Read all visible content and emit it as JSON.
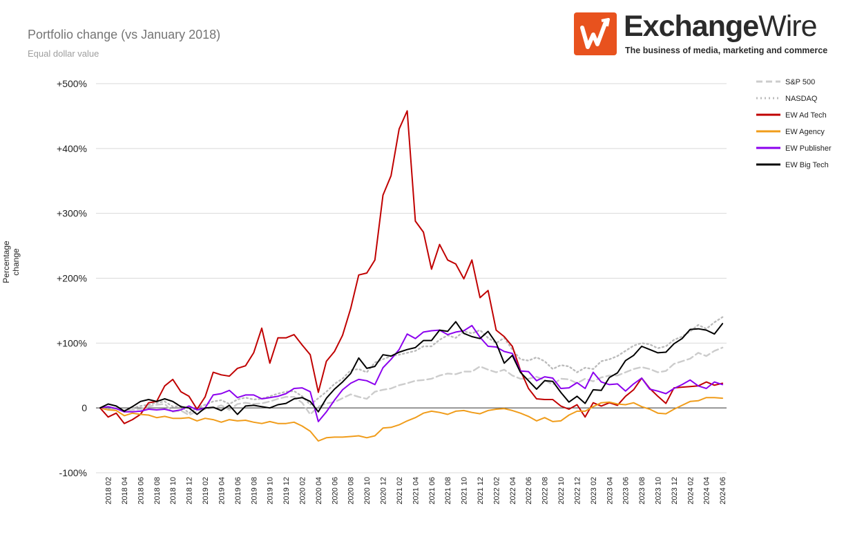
{
  "header": {
    "title": "Portfolio change (vs January 2018)",
    "subtitle": "Equal dollar value"
  },
  "logo": {
    "name_bold": "Exchange",
    "name_light": "Wire",
    "tagline": "The business of media, marketing and commerce",
    "brand_color": "#e8521e"
  },
  "chart_data": {
    "type": "line",
    "title": "Portfolio change (vs January 2018)",
    "subtitle": "Equal dollar value",
    "ylabel": "Percentage change",
    "xlabel": "",
    "ylim": [
      -100,
      500
    ],
    "yticks": [
      -100,
      0,
      100,
      200,
      300,
      400,
      500
    ],
    "ytick_labels": [
      "-100%",
      "0",
      "+100%",
      "+200%",
      "+300%",
      "+400%",
      "+500%"
    ],
    "grid": true,
    "legend_position": "right",
    "x": [
      "2018 01",
      "2018 02",
      "2018 03",
      "2018 04",
      "2018 05",
      "2018 06",
      "2018 07",
      "2018 08",
      "2018 09",
      "2018 10",
      "2018 11",
      "2018 12",
      "2019 01",
      "2019 02",
      "2019 03",
      "2019 04",
      "2019 05",
      "2019 06",
      "2019 07",
      "2019 08",
      "2019 09",
      "2019 10",
      "2019 11",
      "2019 12",
      "2020 01",
      "2020 02",
      "2020 03",
      "2020 04",
      "2020 05",
      "2020 06",
      "2020 07",
      "2020 08",
      "2020 09",
      "2020 10",
      "2020 11",
      "2020 12",
      "2021 01",
      "2021 02",
      "2021 03",
      "2021 04",
      "2021 05",
      "2021 06",
      "2021 07",
      "2021 08",
      "2021 09",
      "2021 10",
      "2021 11",
      "2021 12",
      "2022 01",
      "2022 02",
      "2022 03",
      "2022 04",
      "2022 05",
      "2022 06",
      "2022 07",
      "2022 08",
      "2022 09",
      "2022 10",
      "2022 11",
      "2022 12",
      "2023 01",
      "2023 02",
      "2023 03",
      "2023 04",
      "2023 05",
      "2023 06",
      "2023 07",
      "2023 08",
      "2023 09",
      "2023 10",
      "2023 11",
      "2023 12",
      "2024 01",
      "2024 02",
      "2024 03",
      "2024 04",
      "2024 05",
      "2024 06"
    ],
    "x_tick_labels": [
      "2018 02",
      "2018 04",
      "2018 06",
      "2018 08",
      "2018 10",
      "2018 12",
      "2019 02",
      "2019 04",
      "2019 06",
      "2019 08",
      "2019 10",
      "2019 12",
      "2020 02",
      "2020 04",
      "2020 06",
      "2020 08",
      "2020 10",
      "2020 12",
      "2021 02",
      "2021 04",
      "2021 06",
      "2021 08",
      "2021 10",
      "2021 12",
      "2022 02",
      "2022 04",
      "2022 06",
      "2022 08",
      "2022 10",
      "2022 12",
      "2023 02",
      "2023 04",
      "2023 06",
      "2023 08",
      "2023 10",
      "2023 12",
      "2024 02",
      "2024 04",
      "2024 06"
    ],
    "series": [
      {
        "name": "S&P 500",
        "color": "#cccccc",
        "style": "dashed",
        "values": [
          0,
          -3,
          -1,
          -6,
          -3,
          -2,
          2,
          5,
          6,
          -6,
          -4,
          -11,
          -5,
          -2,
          0,
          4,
          -3,
          6,
          8,
          6,
          7,
          10,
          14,
          17,
          17,
          8,
          -10,
          2,
          7,
          9,
          15,
          21,
          17,
          14,
          25,
          28,
          30,
          35,
          38,
          42,
          43,
          45,
          50,
          53,
          52,
          56,
          56,
          64,
          59,
          55,
          59,
          50,
          45,
          45,
          48,
          43,
          36,
          45,
          44,
          38,
          45,
          41,
          47,
          50,
          50,
          55,
          60,
          63,
          60,
          55,
          57,
          68,
          72,
          76,
          85,
          80,
          88,
          93
        ]
      },
      {
        "name": "NASDAQ",
        "color": "#bbbbbb",
        "style": "dotted",
        "values": [
          0,
          -2,
          0,
          -4,
          0,
          3,
          5,
          8,
          10,
          2,
          3,
          -8,
          0,
          5,
          10,
          12,
          6,
          13,
          16,
          13,
          14,
          18,
          22,
          25,
          26,
          18,
          5,
          15,
          25,
          37,
          45,
          58,
          60,
          55,
          70,
          75,
          80,
          82,
          85,
          88,
          95,
          95,
          105,
          112,
          108,
          118,
          115,
          120,
          108,
          100,
          108,
          90,
          75,
          73,
          78,
          72,
          60,
          66,
          64,
          55,
          62,
          60,
          72,
          75,
          80,
          88,
          96,
          100,
          98,
          92,
          95,
          105,
          110,
          118,
          128,
          122,
          132,
          140
        ]
      },
      {
        "name": "EW Ad Tech",
        "color": "#c00000",
        "style": "solid",
        "values": [
          0,
          -14,
          -8,
          -24,
          -18,
          -10,
          8,
          10,
          34,
          44,
          25,
          18,
          -2,
          17,
          55,
          51,
          49,
          61,
          65,
          85,
          123,
          69,
          108,
          108,
          113,
          97,
          82,
          24,
          72,
          87,
          112,
          153,
          205,
          208,
          228,
          328,
          358,
          430,
          458,
          288,
          271,
          214,
          252,
          228,
          222,
          199,
          228,
          170,
          181,
          120,
          110,
          95,
          58,
          30,
          14,
          13,
          13,
          3,
          -2,
          5,
          -14,
          8,
          3,
          8,
          4,
          18,
          28,
          46,
          30,
          18,
          7,
          31,
          32,
          33,
          34,
          40,
          35,
          38
        ]
      },
      {
        "name": "EW Agency",
        "color": "#f09c1a",
        "style": "solid",
        "values": [
          0,
          -3,
          -4,
          -12,
          -8,
          -10,
          -11,
          -15,
          -13,
          -16,
          -16,
          -15,
          -20,
          -16,
          -18,
          -22,
          -18,
          -20,
          -19,
          -22,
          -24,
          -21,
          -24,
          -24,
          -22,
          -28,
          -36,
          -51,
          -46,
          -45,
          -45,
          -44,
          -43,
          -46,
          -43,
          -31,
          -30,
          -26,
          -20,
          -15,
          -8,
          -5,
          -7,
          -10,
          -5,
          -4,
          -7,
          -9,
          -4,
          -2,
          -1,
          -4,
          -8,
          -13,
          -20,
          -15,
          -21,
          -20,
          -11,
          -5,
          -5,
          2,
          8,
          9,
          6,
          5,
          8,
          2,
          -2,
          -8,
          -9,
          -2,
          4,
          10,
          11,
          16,
          16,
          15
        ]
      },
      {
        "name": "EW Publisher",
        "color": "#8b00ee",
        "style": "solid",
        "values": [
          0,
          2,
          -1,
          -6,
          -6,
          -5,
          -2,
          -3,
          -2,
          -5,
          -3,
          3,
          -3,
          0,
          20,
          22,
          27,
          16,
          20,
          20,
          14,
          16,
          18,
          22,
          30,
          31,
          25,
          -21,
          -6,
          12,
          28,
          38,
          44,
          42,
          36,
          62,
          75,
          90,
          114,
          107,
          117,
          119,
          120,
          113,
          117,
          119,
          127,
          109,
          95,
          94,
          87,
          84,
          57,
          56,
          42,
          48,
          46,
          30,
          31,
          39,
          30,
          55,
          40,
          36,
          37,
          26,
          37,
          46,
          29,
          26,
          22,
          30,
          36,
          43,
          34,
          30,
          40,
          36
        ]
      },
      {
        "name": "EW Big Tech",
        "color": "#000000",
        "style": "solid",
        "values": [
          0,
          6,
          3,
          -5,
          2,
          10,
          13,
          10,
          14,
          10,
          2,
          0,
          -10,
          0,
          1,
          -4,
          4,
          -10,
          3,
          4,
          2,
          0,
          5,
          7,
          14,
          16,
          10,
          -6,
          15,
          29,
          40,
          53,
          77,
          61,
          64,
          82,
          80,
          86,
          90,
          93,
          104,
          104,
          120,
          118,
          133,
          115,
          110,
          107,
          118,
          100,
          69,
          81,
          55,
          42,
          29,
          42,
          41,
          24,
          9,
          18,
          7,
          28,
          27,
          47,
          54,
          73,
          81,
          95,
          90,
          85,
          86,
          99,
          107,
          121,
          122,
          120,
          114,
          130
        ]
      }
    ]
  }
}
